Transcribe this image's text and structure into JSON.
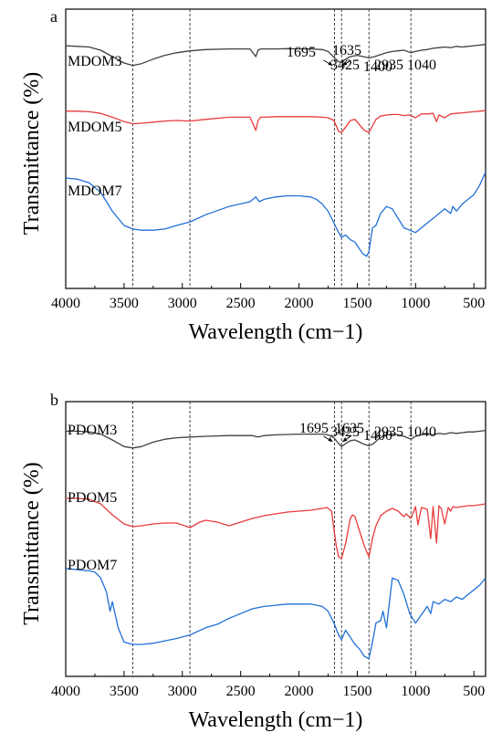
{
  "chart_data": [
    {
      "type": "line",
      "panel_label": "a",
      "xlabel": "Wavelength (cm−1)",
      "ylabel": "Transmittance (%)",
      "xlim": [
        4000,
        400
      ],
      "x_ticks": [
        4000,
        3500,
        3000,
        2500,
        2000,
        1500,
        1000,
        500
      ],
      "x_reversed": true,
      "y_ticks_shown": false,
      "grid": false,
      "reference_lines": [
        3425,
        2935,
        1695,
        1635,
        1400,
        1040
      ],
      "annotations": [
        {
          "text": "3425",
          "x": 3425
        },
        {
          "text": "2935",
          "x": 2935
        },
        {
          "text": "1695",
          "x": 1695
        },
        {
          "text": "1635",
          "x": 1635
        },
        {
          "text": "1400",
          "x": 1400
        },
        {
          "text": "1040",
          "x": 1040
        }
      ],
      "series": [
        {
          "name": "MDOM3",
          "color": "#404040",
          "x": [
            4000,
            3900,
            3800,
            3700,
            3600,
            3500,
            3425,
            3350,
            3250,
            3150,
            3050,
            2935,
            2800,
            2600,
            2420,
            2370,
            2350,
            2330,
            2300,
            2200,
            2100,
            2000,
            1900,
            1800,
            1750,
            1695,
            1660,
            1635,
            1600,
            1560,
            1500,
            1450,
            1400,
            1350,
            1300,
            1250,
            1200,
            1150,
            1100,
            1040,
            1000,
            950,
            900,
            850,
            800,
            750,
            700,
            650,
            600,
            550,
            500,
            450,
            400
          ],
          "y": [
            0.97,
            0.96,
            0.95,
            0.9,
            0.8,
            0.7,
            0.66,
            0.69,
            0.76,
            0.82,
            0.86,
            0.89,
            0.91,
            0.92,
            0.92,
            0.8,
            0.9,
            0.92,
            0.92,
            0.92,
            0.925,
            0.92,
            0.92,
            0.91,
            0.88,
            0.78,
            0.72,
            0.71,
            0.76,
            0.8,
            0.82,
            0.8,
            0.78,
            0.8,
            0.83,
            0.86,
            0.88,
            0.89,
            0.9,
            0.86,
            0.88,
            0.9,
            0.91,
            0.93,
            0.94,
            0.95,
            0.94,
            0.96,
            0.95,
            0.96,
            0.97,
            0.98,
            0.99
          ]
        },
        {
          "name": "MDOM5",
          "color": "#e83b3b",
          "x": [
            4000,
            3900,
            3800,
            3700,
            3600,
            3500,
            3425,
            3350,
            3250,
            3150,
            3050,
            2935,
            2800,
            2600,
            2420,
            2370,
            2350,
            2330,
            2300,
            2200,
            2100,
            2000,
            1900,
            1800,
            1750,
            1700,
            1660,
            1635,
            1600,
            1560,
            1520,
            1480,
            1440,
            1400,
            1370,
            1340,
            1300,
            1250,
            1200,
            1150,
            1100,
            1050,
            1000,
            950,
            900,
            850,
            820,
            800,
            750,
            700,
            650,
            600,
            550,
            500,
            450,
            400
          ],
          "y": [
            0.97,
            0.97,
            0.96,
            0.93,
            0.86,
            0.78,
            0.74,
            0.75,
            0.77,
            0.79,
            0.8,
            0.79,
            0.82,
            0.86,
            0.86,
            0.62,
            0.8,
            0.86,
            0.86,
            0.87,
            0.87,
            0.87,
            0.87,
            0.86,
            0.85,
            0.8,
            0.6,
            0.58,
            0.68,
            0.8,
            0.82,
            0.72,
            0.62,
            0.58,
            0.7,
            0.82,
            0.88,
            0.9,
            0.91,
            0.91,
            0.89,
            0.9,
            0.85,
            0.92,
            0.92,
            0.93,
            0.78,
            0.9,
            0.85,
            0.92,
            0.93,
            0.94,
            0.95,
            0.96,
            0.97,
            0.98
          ]
        },
        {
          "name": "MDOM7",
          "color": "#1f6fd6",
          "x": [
            4000,
            3900,
            3800,
            3700,
            3600,
            3500,
            3425,
            3350,
            3250,
            3150,
            3050,
            2935,
            2800,
            2600,
            2420,
            2370,
            2340,
            2300,
            2200,
            2100,
            2000,
            1900,
            1850,
            1800,
            1750,
            1700,
            1660,
            1635,
            1600,
            1560,
            1520,
            1480,
            1450,
            1420,
            1400,
            1370,
            1340,
            1300,
            1250,
            1200,
            1150,
            1100,
            1050,
            1000,
            950,
            900,
            850,
            800,
            750,
            700,
            680,
            650,
            600,
            550,
            500,
            450,
            400
          ],
          "y": [
            0.9,
            0.89,
            0.86,
            0.78,
            0.62,
            0.5,
            0.47,
            0.46,
            0.46,
            0.47,
            0.5,
            0.53,
            0.59,
            0.66,
            0.7,
            0.74,
            0.7,
            0.72,
            0.74,
            0.75,
            0.75,
            0.74,
            0.72,
            0.68,
            0.62,
            0.52,
            0.44,
            0.4,
            0.42,
            0.38,
            0.36,
            0.3,
            0.26,
            0.24,
            0.28,
            0.48,
            0.5,
            0.6,
            0.66,
            0.64,
            0.56,
            0.48,
            0.46,
            0.44,
            0.48,
            0.52,
            0.56,
            0.6,
            0.64,
            0.6,
            0.66,
            0.62,
            0.68,
            0.72,
            0.76,
            0.84,
            0.95
          ]
        }
      ]
    },
    {
      "type": "line",
      "panel_label": "b",
      "xlabel": "Wavelength (cm−1)",
      "ylabel": "Transmittance (%)",
      "xlim": [
        4000,
        400
      ],
      "x_ticks": [
        4000,
        3500,
        3000,
        2500,
        2000,
        1500,
        1000,
        500
      ],
      "x_reversed": true,
      "y_ticks_shown": false,
      "grid": false,
      "reference_lines": [
        3425,
        2935,
        1695,
        1635,
        1400,
        1040
      ],
      "annotations": [
        {
          "text": "3425",
          "x": 3425
        },
        {
          "text": "2935",
          "x": 2935
        },
        {
          "text": "1695",
          "x": 1695
        },
        {
          "text": "1635",
          "x": 1635
        },
        {
          "text": "1400",
          "x": 1400
        },
        {
          "text": "1040",
          "x": 1040
        }
      ],
      "series": [
        {
          "name": "PDOM3",
          "color": "#404040",
          "x": [
            4000,
            3900,
            3800,
            3700,
            3600,
            3500,
            3425,
            3350,
            3250,
            3150,
            3050,
            2935,
            2800,
            2600,
            2400,
            2350,
            2300,
            2200,
            2000,
            1800,
            1750,
            1700,
            1660,
            1635,
            1600,
            1560,
            1520,
            1480,
            1440,
            1400,
            1360,
            1320,
            1280,
            1240,
            1200,
            1150,
            1100,
            1040,
            1000,
            950,
            900,
            850,
            800,
            750,
            700,
            650,
            600,
            550,
            500,
            450,
            400
          ],
          "y": [
            0.97,
            0.97,
            0.96,
            0.93,
            0.85,
            0.76,
            0.74,
            0.76,
            0.82,
            0.86,
            0.88,
            0.89,
            0.9,
            0.91,
            0.91,
            0.89,
            0.91,
            0.92,
            0.93,
            0.93,
            0.92,
            0.88,
            0.8,
            0.76,
            0.8,
            0.84,
            0.85,
            0.82,
            0.79,
            0.77,
            0.8,
            0.86,
            0.9,
            0.92,
            0.93,
            0.92,
            0.9,
            0.86,
            0.9,
            0.92,
            0.93,
            0.92,
            0.94,
            0.93,
            0.95,
            0.94,
            0.95,
            0.96,
            0.96,
            0.97,
            0.98
          ]
        },
        {
          "name": "PDOM5",
          "color": "#e83b3b",
          "x": [
            4000,
            3900,
            3800,
            3700,
            3600,
            3500,
            3425,
            3350,
            3250,
            3150,
            3050,
            2935,
            2850,
            2800,
            2700,
            2600,
            2500,
            2400,
            2300,
            2200,
            2100,
            2000,
            1900,
            1800,
            1760,
            1720,
            1700,
            1680,
            1660,
            1635,
            1600,
            1560,
            1540,
            1520,
            1480,
            1440,
            1400,
            1370,
            1340,
            1300,
            1250,
            1200,
            1150,
            1100,
            1080,
            1040,
            1000,
            980,
            950,
            900,
            870,
            850,
            820,
            800,
            780,
            750,
            720,
            700,
            680,
            650,
            600,
            550,
            500,
            450,
            400
          ],
          "y": [
            0.94,
            0.94,
            0.93,
            0.88,
            0.76,
            0.66,
            0.63,
            0.64,
            0.66,
            0.67,
            0.67,
            0.62,
            0.68,
            0.7,
            0.68,
            0.64,
            0.68,
            0.72,
            0.75,
            0.77,
            0.79,
            0.8,
            0.81,
            0.83,
            0.84,
            0.8,
            0.6,
            0.42,
            0.3,
            0.28,
            0.45,
            0.72,
            0.76,
            0.74,
            0.58,
            0.42,
            0.3,
            0.5,
            0.64,
            0.75,
            0.8,
            0.83,
            0.8,
            0.74,
            0.77,
            0.72,
            0.85,
            0.65,
            0.84,
            0.82,
            0.5,
            0.85,
            0.45,
            0.86,
            0.83,
            0.66,
            0.84,
            0.8,
            0.85,
            0.84,
            0.85,
            0.86,
            0.86,
            0.87,
            0.88
          ]
        },
        {
          "name": "PDOM7",
          "color": "#1f6fd6",
          "x": [
            4000,
            3900,
            3800,
            3750,
            3700,
            3650,
            3620,
            3600,
            3550,
            3500,
            3425,
            3350,
            3250,
            3150,
            3050,
            2935,
            2800,
            2700,
            2600,
            2500,
            2400,
            2300,
            2200,
            2100,
            2000,
            1900,
            1800,
            1750,
            1700,
            1660,
            1635,
            1600,
            1560,
            1520,
            1480,
            1440,
            1400,
            1370,
            1340,
            1300,
            1280,
            1250,
            1200,
            1150,
            1100,
            1050,
            1000,
            950,
            900,
            870,
            850,
            800,
            750,
            700,
            650,
            600,
            550,
            500,
            450,
            400
          ],
          "y": [
            0.94,
            0.93,
            0.92,
            0.91,
            0.86,
            0.74,
            0.58,
            0.66,
            0.44,
            0.32,
            0.3,
            0.3,
            0.31,
            0.33,
            0.35,
            0.38,
            0.44,
            0.47,
            0.52,
            0.56,
            0.6,
            0.62,
            0.63,
            0.64,
            0.64,
            0.64,
            0.62,
            0.58,
            0.48,
            0.38,
            0.34,
            0.42,
            0.36,
            0.3,
            0.26,
            0.2,
            0.18,
            0.32,
            0.48,
            0.5,
            0.58,
            0.44,
            0.86,
            0.84,
            0.72,
            0.56,
            0.48,
            0.55,
            0.62,
            0.56,
            0.66,
            0.64,
            0.68,
            0.66,
            0.7,
            0.68,
            0.72,
            0.76,
            0.8,
            0.86
          ]
        }
      ]
    }
  ]
}
